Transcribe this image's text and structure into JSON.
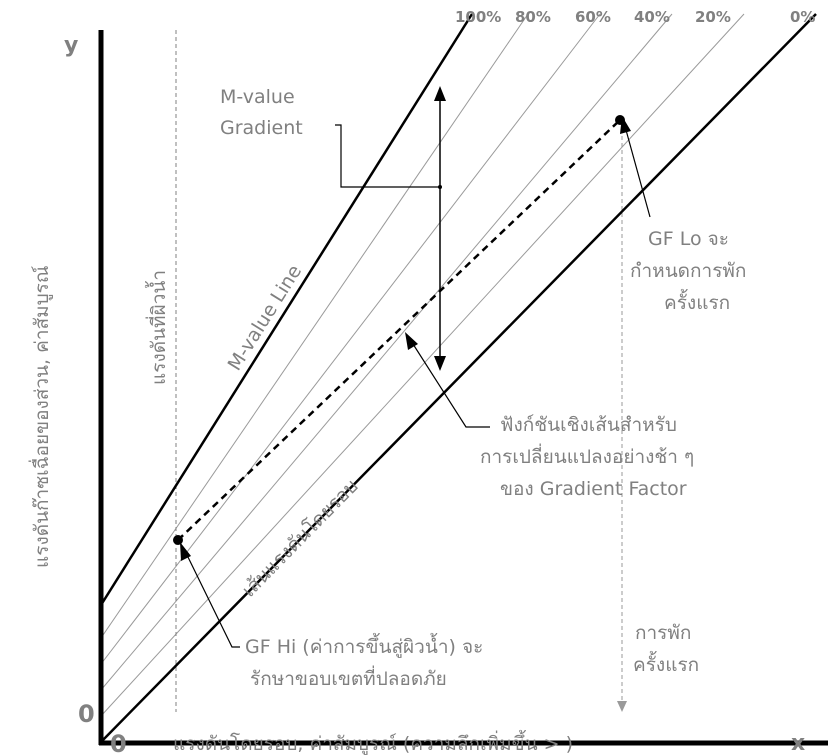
{
  "diagram": {
    "axis_y_letter": "y",
    "axis_x_letter": "x",
    "origin_x": "0",
    "origin_y": "0",
    "x_axis_label": "แรงดันโดยรอบ, ค่าสัมบูรณ์ (ความลึกเพิ่มขึ้น > )",
    "y_axis_label": "แรงดันก๊าซเฉื่อยของส่วน, ค่าสัมบูรณ์",
    "percent_labels": [
      "100%",
      "80%",
      "60%",
      "40%",
      "20%",
      "0%"
    ],
    "mvalue_gradient_line1": "M-value",
    "mvalue_gradient_line2": "Gradient",
    "mvalue_line_label": "M-value Line",
    "ambient_line_label": "เส้นแรงดันโดยรอบ",
    "surface_pressure_label": "แรงดันที่ผิวน้ำ",
    "gf_lo_line1": "GF Lo จะ",
    "gf_lo_line2": "กำหนดการพัก",
    "gf_lo_line3": "ครั้งแรก",
    "linear_fn_line1": "ฟังก์ชันเชิงเส้นสำหรับ",
    "linear_fn_line2": "การเปลี่ยนแปลงอย่างช้า ๆ",
    "linear_fn_line3": "ของ Gradient Factor",
    "gf_hi_line1": "GF Hi (ค่าการขึ้นสู่ผิวน้ำ) จะ",
    "gf_hi_line2": "รักษาขอบเขตที่ปลอดภัย",
    "first_stop_line1": "การพัก",
    "first_stop_line2": "ครั้งแรก"
  }
}
